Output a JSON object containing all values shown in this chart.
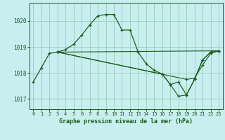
{
  "title": "Graphe pression niveau de la mer (hPa)",
  "background_color": "#c8eef0",
  "grid_color": "#98ccb8",
  "line_color": "#1a5c1a",
  "xlim": [
    -0.5,
    23.5
  ],
  "ylim": [
    1016.6,
    1020.7
  ],
  "yticks": [
    1017,
    1018,
    1019,
    1020
  ],
  "xticks": [
    0,
    1,
    2,
    3,
    4,
    5,
    6,
    7,
    8,
    9,
    10,
    11,
    12,
    13,
    14,
    15,
    16,
    17,
    18,
    19,
    20,
    21,
    22,
    23
  ],
  "series0_x": [
    0,
    1,
    2,
    3,
    4,
    5,
    6,
    7,
    8,
    9,
    10,
    11,
    12,
    13,
    14,
    15,
    16,
    17,
    18,
    19,
    20,
    21,
    22,
    23
  ],
  "series0_y": [
    1017.65,
    1018.2,
    1018.75,
    1018.8,
    1018.9,
    1019.1,
    1019.45,
    1019.85,
    1020.2,
    1020.25,
    1020.25,
    1019.65,
    1019.65,
    1018.8,
    1018.35,
    1018.1,
    1017.95,
    1017.55,
    1017.65,
    1017.15,
    1017.75,
    1018.5,
    1018.8,
    1018.85
  ],
  "series1_x": [
    3,
    23
  ],
  "series1_y": [
    1018.8,
    1018.85
  ],
  "series2_x": [
    3,
    19,
    20,
    21,
    22,
    23
  ],
  "series2_y": [
    1018.8,
    1017.75,
    1017.8,
    1018.3,
    1018.75,
    1018.85
  ],
  "series3_x": [
    3,
    16,
    17,
    18,
    19,
    20,
    21,
    22,
    23
  ],
  "series3_y": [
    1018.8,
    1017.95,
    1017.55,
    1017.1,
    1017.15,
    1017.75,
    1018.5,
    1018.8,
    1018.85
  ]
}
